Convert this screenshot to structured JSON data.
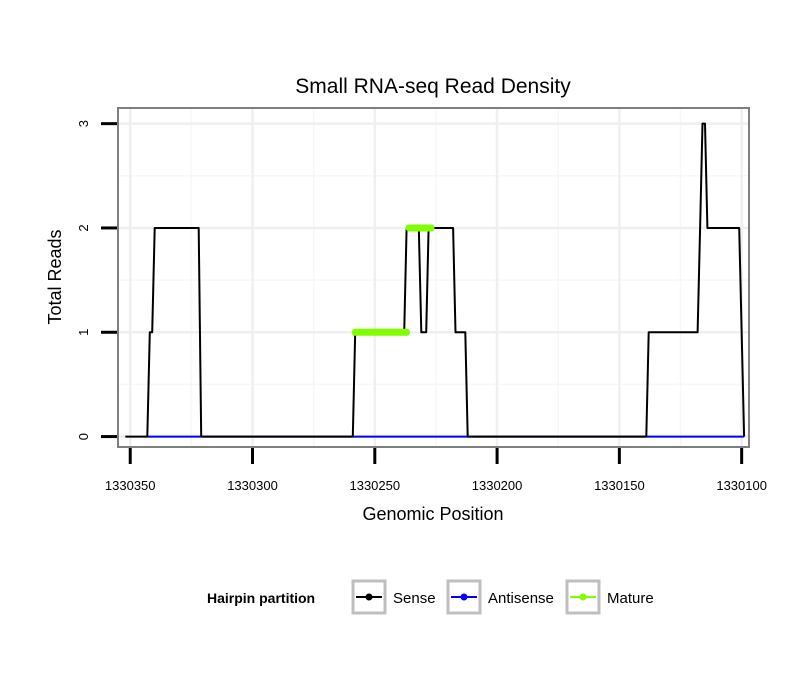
{
  "chart_data": {
    "type": "line",
    "title": "Small RNA-seq Read Density",
    "xlabel": "Genomic Position",
    "ylabel": "Total Reads",
    "x_reversed": true,
    "xlim": [
      1330355,
      1330097
    ],
    "ylim": [
      -0.1,
      3.15
    ],
    "x_ticks": [
      1330350,
      1330300,
      1330250,
      1330200,
      1330150,
      1330100
    ],
    "x_tick_labels": [
      "1330350",
      "1330300",
      "1330250",
      "1330200",
      "1330150",
      "1330100"
    ],
    "y_ticks": [
      0,
      1,
      2,
      3
    ],
    "y_tick_labels": [
      "0",
      "1",
      "2",
      "3"
    ],
    "grid": true,
    "legend": {
      "title": "Hairpin partition",
      "position": "bottom",
      "entries": [
        "Sense",
        "Antisense",
        "Mature"
      ]
    },
    "series": [
      {
        "name": "Sense",
        "color": "#000000",
        "x": [
          1330352,
          1330343,
          1330342,
          1330341,
          1330340,
          1330322,
          1330321,
          1330259,
          1330258,
          1330239,
          1330238,
          1330237,
          1330236,
          1330232,
          1330231,
          1330229,
          1330228,
          1330227,
          1330226,
          1330218,
          1330217,
          1330216,
          1330215,
          1330213,
          1330212,
          1330139,
          1330138,
          1330118,
          1330117,
          1330116,
          1330115,
          1330114,
          1330113,
          1330101,
          1330099
        ],
        "y": [
          0,
          0,
          1,
          1,
          2,
          2,
          0,
          0,
          1,
          1,
          1,
          2,
          2,
          2,
          1,
          1,
          2,
          2,
          2,
          2,
          1,
          1,
          1,
          1,
          0,
          0,
          1,
          1,
          2,
          3,
          3,
          2,
          2,
          2,
          0
        ]
      },
      {
        "name": "Antisense",
        "color": "#0000ff",
        "x": [
          1330343,
          1330099
        ],
        "y": [
          0,
          0
        ]
      },
      {
        "name": "Mature",
        "color": "#7fff00",
        "segments": [
          {
            "x": [
              1330258,
              1330237
            ],
            "y": [
              1,
              1
            ]
          },
          {
            "x": [
              1330236,
              1330227
            ],
            "y": [
              2,
              2
            ]
          }
        ]
      }
    ]
  }
}
